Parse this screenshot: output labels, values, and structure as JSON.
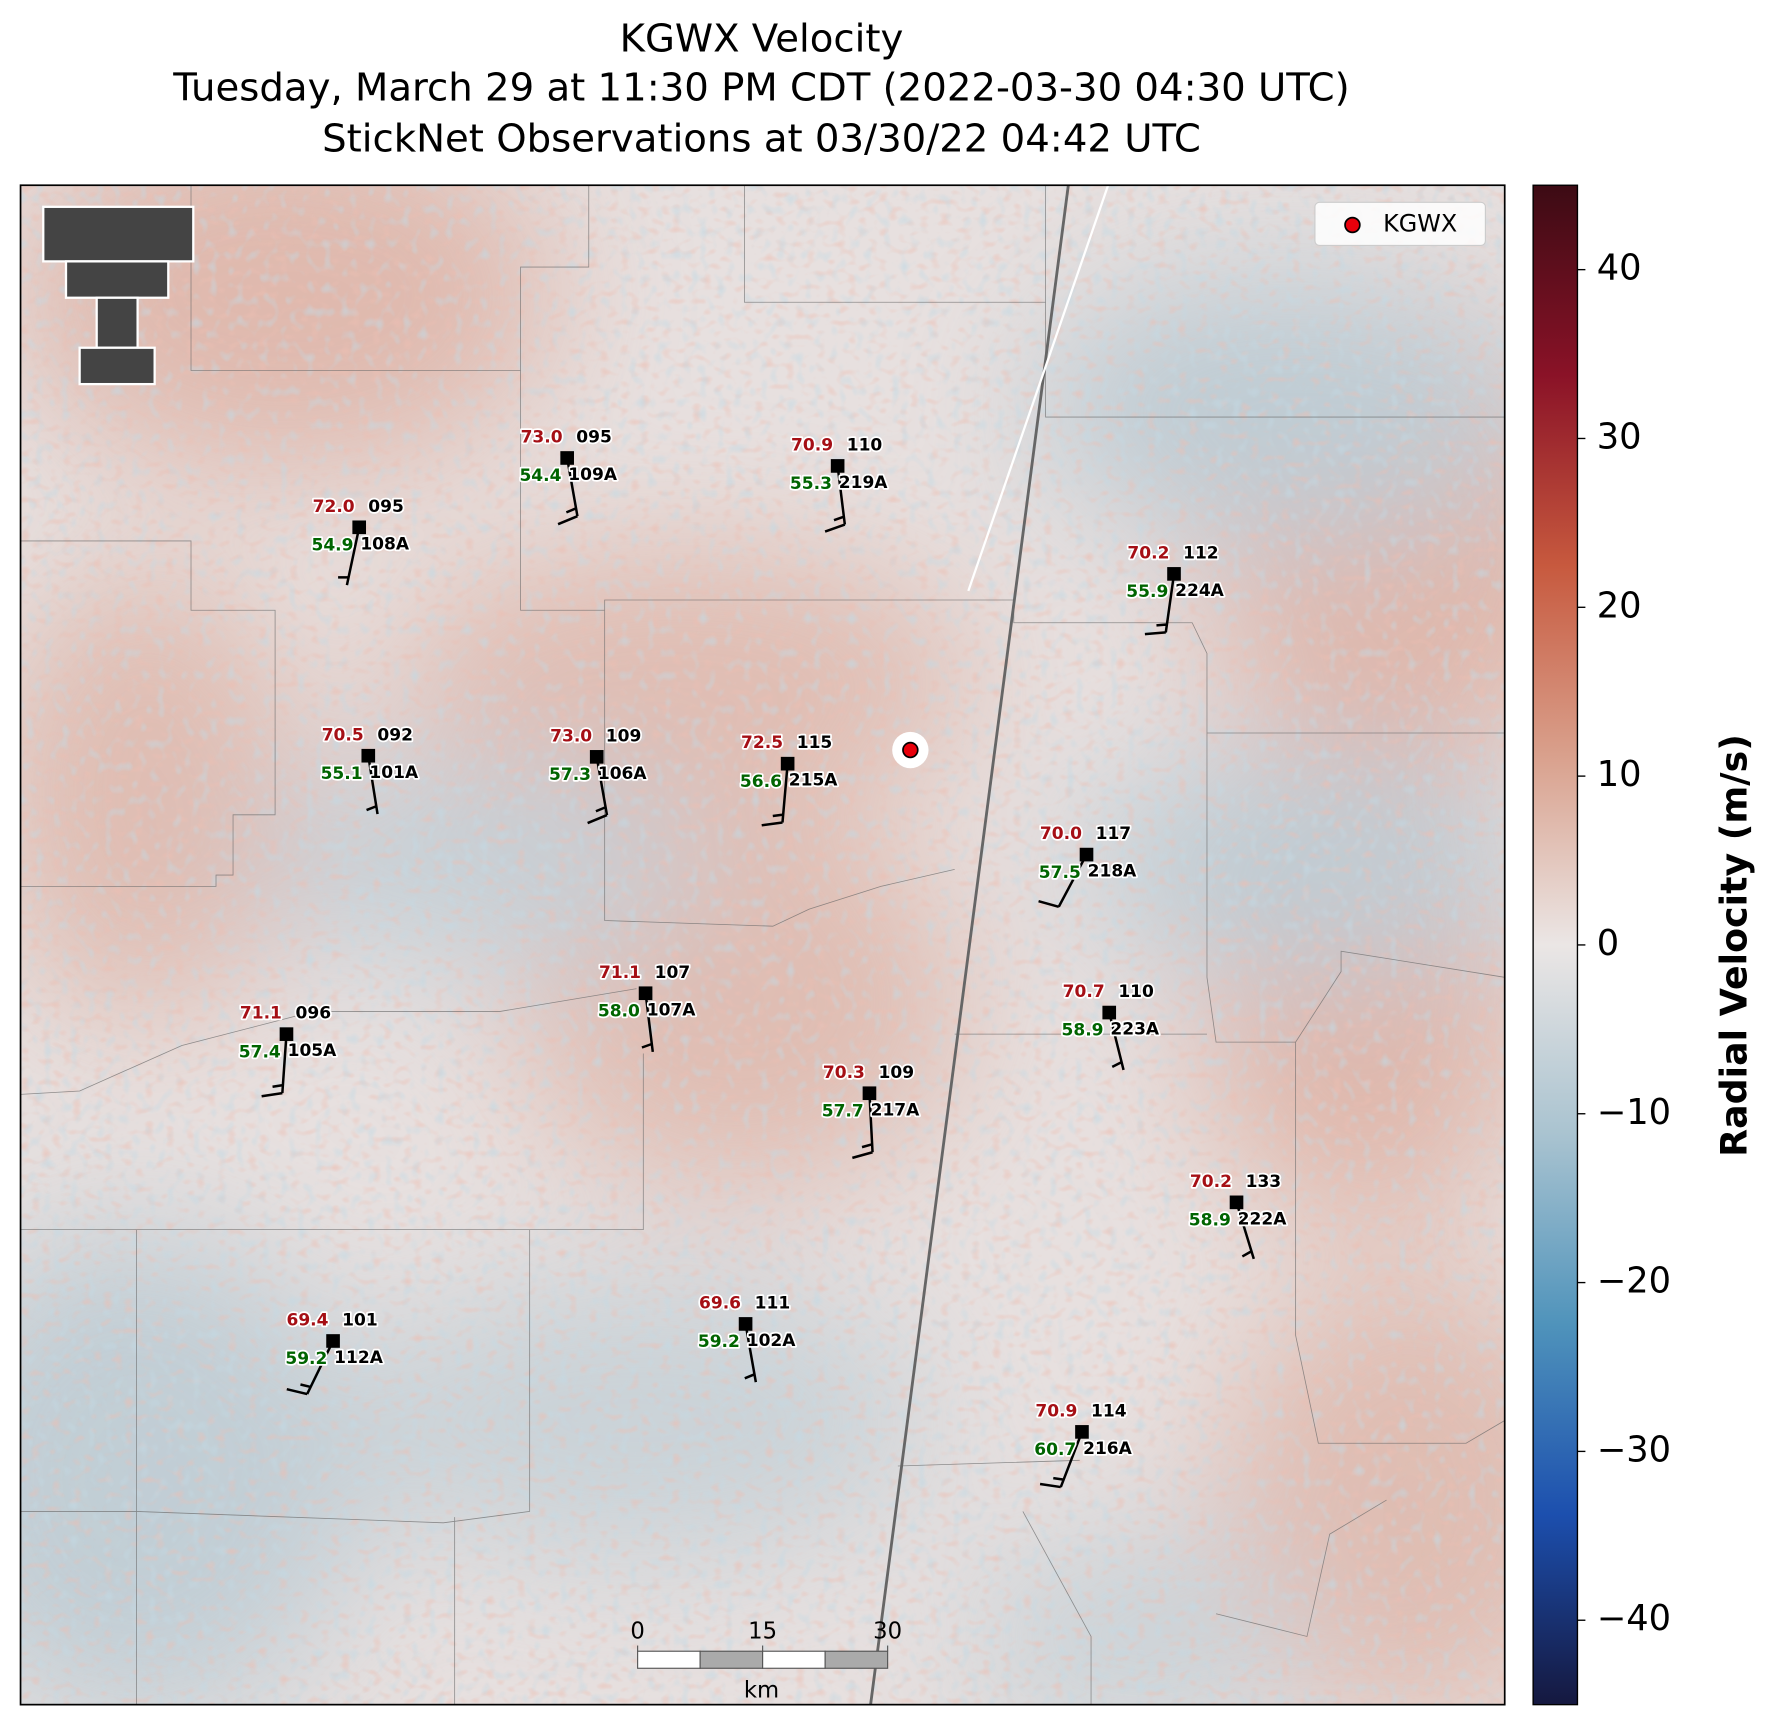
{
  "title": [
    "KGWX Velocity",
    "Tuesday, March 29 at 11:30 PM CDT (2022-03-30 04:30 UTC)",
    "StickNet Observations at 03/30/22 04:42 UTC"
  ],
  "legend": {
    "label": "KGWX"
  },
  "colorbar": {
    "label": "Radial Velocity (m/s)",
    "clim": [
      -45,
      45
    ],
    "ticks": [
      {
        "value": -40,
        "label": "−40"
      },
      {
        "value": -30,
        "label": "−30"
      },
      {
        "value": -20,
        "label": "−20"
      },
      {
        "value": -10,
        "label": "−10"
      },
      0,
      10,
      20,
      30,
      40
    ],
    "colors": [
      "#15183f",
      "#1c4fae",
      "#4f93bb",
      "#a9c3d0",
      "#ebe6e5",
      "#d9a08c",
      "#c7593e",
      "#8a1227",
      "#3c0b14"
    ]
  },
  "scale_bar": {
    "ticks": [
      0,
      15,
      30
    ],
    "unit": "km"
  },
  "stations": [
    {
      "id": "109A",
      "temp": "73.0",
      "dewpoint": "54.4",
      "pressure": "095",
      "wind_dir": 170,
      "wind_speed": 15
    },
    {
      "id": "108A",
      "temp": "72.0",
      "dewpoint": "54.9",
      "pressure": "095",
      "wind_dir": 192,
      "wind_speed": 5
    },
    {
      "id": "219A",
      "temp": "70.9",
      "dewpoint": "55.3",
      "pressure": "110",
      "wind_dir": 173,
      "wind_speed": 15
    },
    {
      "id": "224A",
      "temp": "70.2",
      "dewpoint": "55.9",
      "pressure": "112",
      "wind_dir": 188,
      "wind_speed": 15
    },
    {
      "id": "101A",
      "temp": "70.5",
      "dewpoint": "55.1",
      "pressure": "092",
      "wind_dir": 171,
      "wind_speed": 5
    },
    {
      "id": "106A",
      "temp": "73.0",
      "dewpoint": "57.3",
      "pressure": "109",
      "wind_dir": 170,
      "wind_speed": 15
    },
    {
      "id": "215A",
      "temp": "72.5",
      "dewpoint": "56.6",
      "pressure": "115",
      "wind_dir": 185,
      "wind_speed": 15
    },
    {
      "id": "218A",
      "temp": "70.0",
      "dewpoint": "57.5",
      "pressure": "117",
      "wind_dir": 208,
      "wind_speed": 10
    },
    {
      "id": "107A",
      "temp": "71.1",
      "dewpoint": "58.0",
      "pressure": "107",
      "wind_dir": 173,
      "wind_speed": 5
    },
    {
      "id": "105A",
      "temp": "71.1",
      "dewpoint": "57.4",
      "pressure": "096",
      "wind_dir": 184,
      "wind_speed": 15
    },
    {
      "id": "223A",
      "temp": "70.7",
      "dewpoint": "58.9",
      "pressure": "110",
      "wind_dir": 166,
      "wind_speed": 5
    },
    {
      "id": "217A",
      "temp": "70.3",
      "dewpoint": "57.7",
      "pressure": "109",
      "wind_dir": 177,
      "wind_speed": 15
    },
    {
      "id": "222A",
      "temp": "70.2",
      "dewpoint": "58.9",
      "pressure": "133",
      "wind_dir": 163,
      "wind_speed": 5
    },
    {
      "id": "112A",
      "temp": "69.4",
      "dewpoint": "59.2",
      "pressure": "101",
      "wind_dir": 206,
      "wind_speed": 15
    },
    {
      "id": "102A",
      "temp": "69.6",
      "dewpoint": "59.2",
      "pressure": "111",
      "wind_dir": 170,
      "wind_speed": 5
    },
    {
      "id": "216A",
      "temp": "70.9",
      "dewpoint": "60.7",
      "pressure": "114",
      "wind_dir": 201,
      "wind_speed": 15
    }
  ]
}
